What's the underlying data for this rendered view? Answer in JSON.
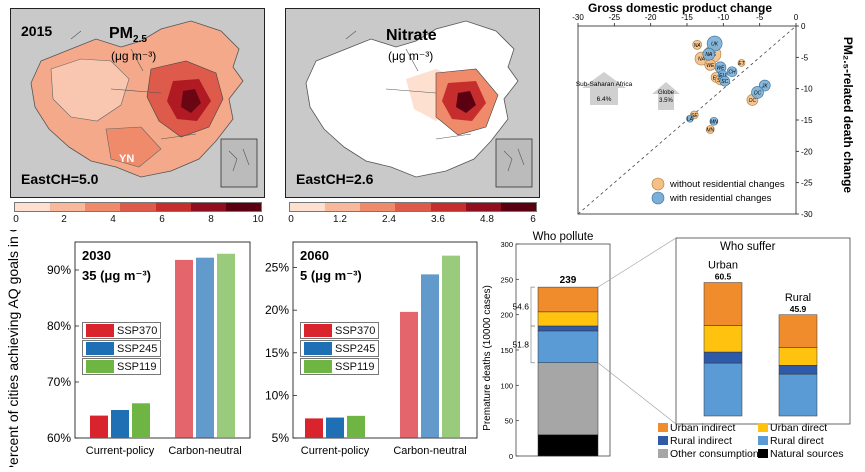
{
  "colors": {
    "map_scale": [
      "#fde0d0",
      "#f7b89c",
      "#ef8a6a",
      "#de5a4a",
      "#c62d2d",
      "#8f0f1d",
      "#5a0010"
    ],
    "ssp370": "#d9232d",
    "ssp245": "#1f6fb5",
    "ssp119": "#6fb544",
    "urban_indirect": "#f08c2c",
    "urban_direct": "#ffc20e",
    "rural_indirect": "#2e5aa8",
    "rural_direct": "#5b9bd5",
    "other_consumption": "#a6a6a6",
    "natural_sources": "#000000"
  },
  "map_pm25": {
    "year": "2015",
    "title": "PM",
    "subscript": "2.5",
    "unit": "(μg m⁻³)",
    "region_label": "YN",
    "stat": "EastCH=5.0",
    "colorbar_ticks": [
      "0",
      "2",
      "4",
      "6",
      "8",
      "10"
    ]
  },
  "map_nitrate": {
    "title": "Nitrate",
    "unit": "(μg m⁻³)",
    "stat": "EastCH=2.6",
    "colorbar_ticks": [
      "0",
      "1.2",
      "2.4",
      "3.6",
      "4.8",
      "6"
    ]
  },
  "chart_data": [
    {
      "type": "scatter",
      "title": "Gross domestic product change",
      "ylabel": "PM₂.₅-related death change",
      "xlim": [
        -30,
        0
      ],
      "ylim": [
        -30,
        0
      ],
      "x_ticks": [
        "-30",
        "-25",
        "-20",
        "-15",
        "-10",
        "-5",
        "0"
      ],
      "y_ticks": [
        "0",
        "-5",
        "-10",
        "-15",
        "-20",
        "-25",
        "-30"
      ],
      "legend": [
        "without residential changes",
        "with residential changes"
      ],
      "annotations": [
        "Sub-Saharan Africa",
        "6.4%",
        "Globe",
        "3.5%"
      ],
      "series": [
        {
          "name": "without residential changes",
          "points": [
            {
              "label": "US",
              "x": -11.5,
              "y": -4.5,
              "size": 14
            },
            {
              "label": "NA",
              "x": -13,
              "y": -5.2,
              "size": 10
            },
            {
              "label": "WE",
              "x": -11.8,
              "y": -6.2,
              "size": 8
            },
            {
              "label": "EA",
              "x": -11,
              "y": -8.2,
              "size": 7
            },
            {
              "label": "SC",
              "x": -10.4,
              "y": -8.6,
              "size": 7
            },
            {
              "label": "OC",
              "x": -6,
              "y": -11.8,
              "size": 8
            },
            {
              "label": "SE",
              "x": -14,
              "y": -14.2,
              "size": 5
            },
            {
              "label": "MN",
              "x": -11.8,
              "y": -16.5,
              "size": 5
            },
            {
              "label": "NA",
              "x": -13.6,
              "y": -3,
              "size": 6
            },
            {
              "label": "ET",
              "x": -7.5,
              "y": -5.9,
              "size": 4
            }
          ]
        },
        {
          "name": "with residential changes",
          "points": [
            {
              "label": "UK",
              "x": -11.2,
              "y": -2.8,
              "size": 12
            },
            {
              "label": "NA",
              "x": -12,
              "y": -4.5,
              "size": 9
            },
            {
              "label": "WE",
              "x": -10.4,
              "y": -6.6,
              "size": 8
            },
            {
              "label": "CH",
              "x": -8.8,
              "y": -7.3,
              "size": 7
            },
            {
              "label": "EU",
              "x": -10.1,
              "y": -7.8,
              "size": 6
            },
            {
              "label": "SC",
              "x": -9.8,
              "y": -8.8,
              "size": 7
            },
            {
              "label": "JK",
              "x": -4.3,
              "y": -9.5,
              "size": 8
            },
            {
              "label": "OC",
              "x": -5.3,
              "y": -10.6,
              "size": 9
            },
            {
              "label": "MN",
              "x": -11.3,
              "y": -15.2,
              "size": 5
            },
            {
              "label": "LA",
              "x": -14.6,
              "y": -14.8,
              "size": 4
            }
          ]
        }
      ]
    },
    {
      "type": "bar",
      "year": "2030",
      "target": "35 (μg m⁻³)",
      "ylabel": "Percent of cities achieving AQ goals in China",
      "categories": [
        "Current-policy",
        "Carbon-neutral"
      ],
      "ylim": [
        60,
        95
      ],
      "y_ticks": [
        "60%",
        "70%",
        "80%",
        "90%"
      ],
      "series": [
        {
          "name": "SSP370",
          "values": [
            64,
            91.8
          ]
        },
        {
          "name": "SSP245",
          "values": [
            65,
            92.2
          ]
        },
        {
          "name": "SSP119",
          "values": [
            66.2,
            92.9
          ]
        }
      ]
    },
    {
      "type": "bar",
      "year": "2060",
      "target": "5 (μg m⁻³)",
      "categories": [
        "Current-policy",
        "Carbon-neutral"
      ],
      "ylim": [
        5,
        28
      ],
      "y_ticks": [
        "5%",
        "10%",
        "15%",
        "20%",
        "25%"
      ],
      "series": [
        {
          "name": "SSP370",
          "values": [
            7.3,
            19.8
          ]
        },
        {
          "name": "SSP245",
          "values": [
            7.4,
            24.2
          ]
        },
        {
          "name": "SSP119",
          "values": [
            7.6,
            26.4
          ]
        }
      ]
    },
    {
      "type": "bar",
      "title": "Who pollute",
      "ylabel": "Premature deaths (10000 cases)",
      "ylim": [
        0,
        300
      ],
      "y_ticks": [
        "0",
        "50",
        "100",
        "150",
        "200",
        "250",
        "300"
      ],
      "total_label": "239",
      "bracket_labels": [
        "54.6",
        "51.8"
      ],
      "stack": [
        {
          "name": "Natural sources",
          "value": 30
        },
        {
          "name": "Other consumption",
          "value": 102
        },
        {
          "name": "Rural direct",
          "value": 45
        },
        {
          "name": "Rural indirect",
          "value": 7
        },
        {
          "name": "Urban direct",
          "value": 20
        },
        {
          "name": "Urban indirect",
          "value": 35
        }
      ]
    },
    {
      "type": "bar",
      "title": "Who suffer",
      "categories": [
        "Urban",
        "Rural"
      ],
      "total_labels": [
        "60.5",
        "45.9"
      ],
      "ylim": [
        0,
        68
      ],
      "stacks": [
        [
          {
            "name": "Rural direct",
            "value": 24
          },
          {
            "name": "Rural indirect",
            "value": 5
          },
          {
            "name": "Urban direct",
            "value": 12
          },
          {
            "name": "Urban indirect",
            "value": 19.5
          }
        ],
        [
          {
            "name": "Rural direct",
            "value": 19
          },
          {
            "name": "Rural indirect",
            "value": 4
          },
          {
            "name": "Urban direct",
            "value": 8
          },
          {
            "name": "Urban indirect",
            "value": 14.9
          }
        ]
      ],
      "legend": [
        "Urban indirect",
        "Urban direct",
        "Rural indirect",
        "Rural direct",
        "Other consumption",
        "Natural sources"
      ]
    }
  ]
}
